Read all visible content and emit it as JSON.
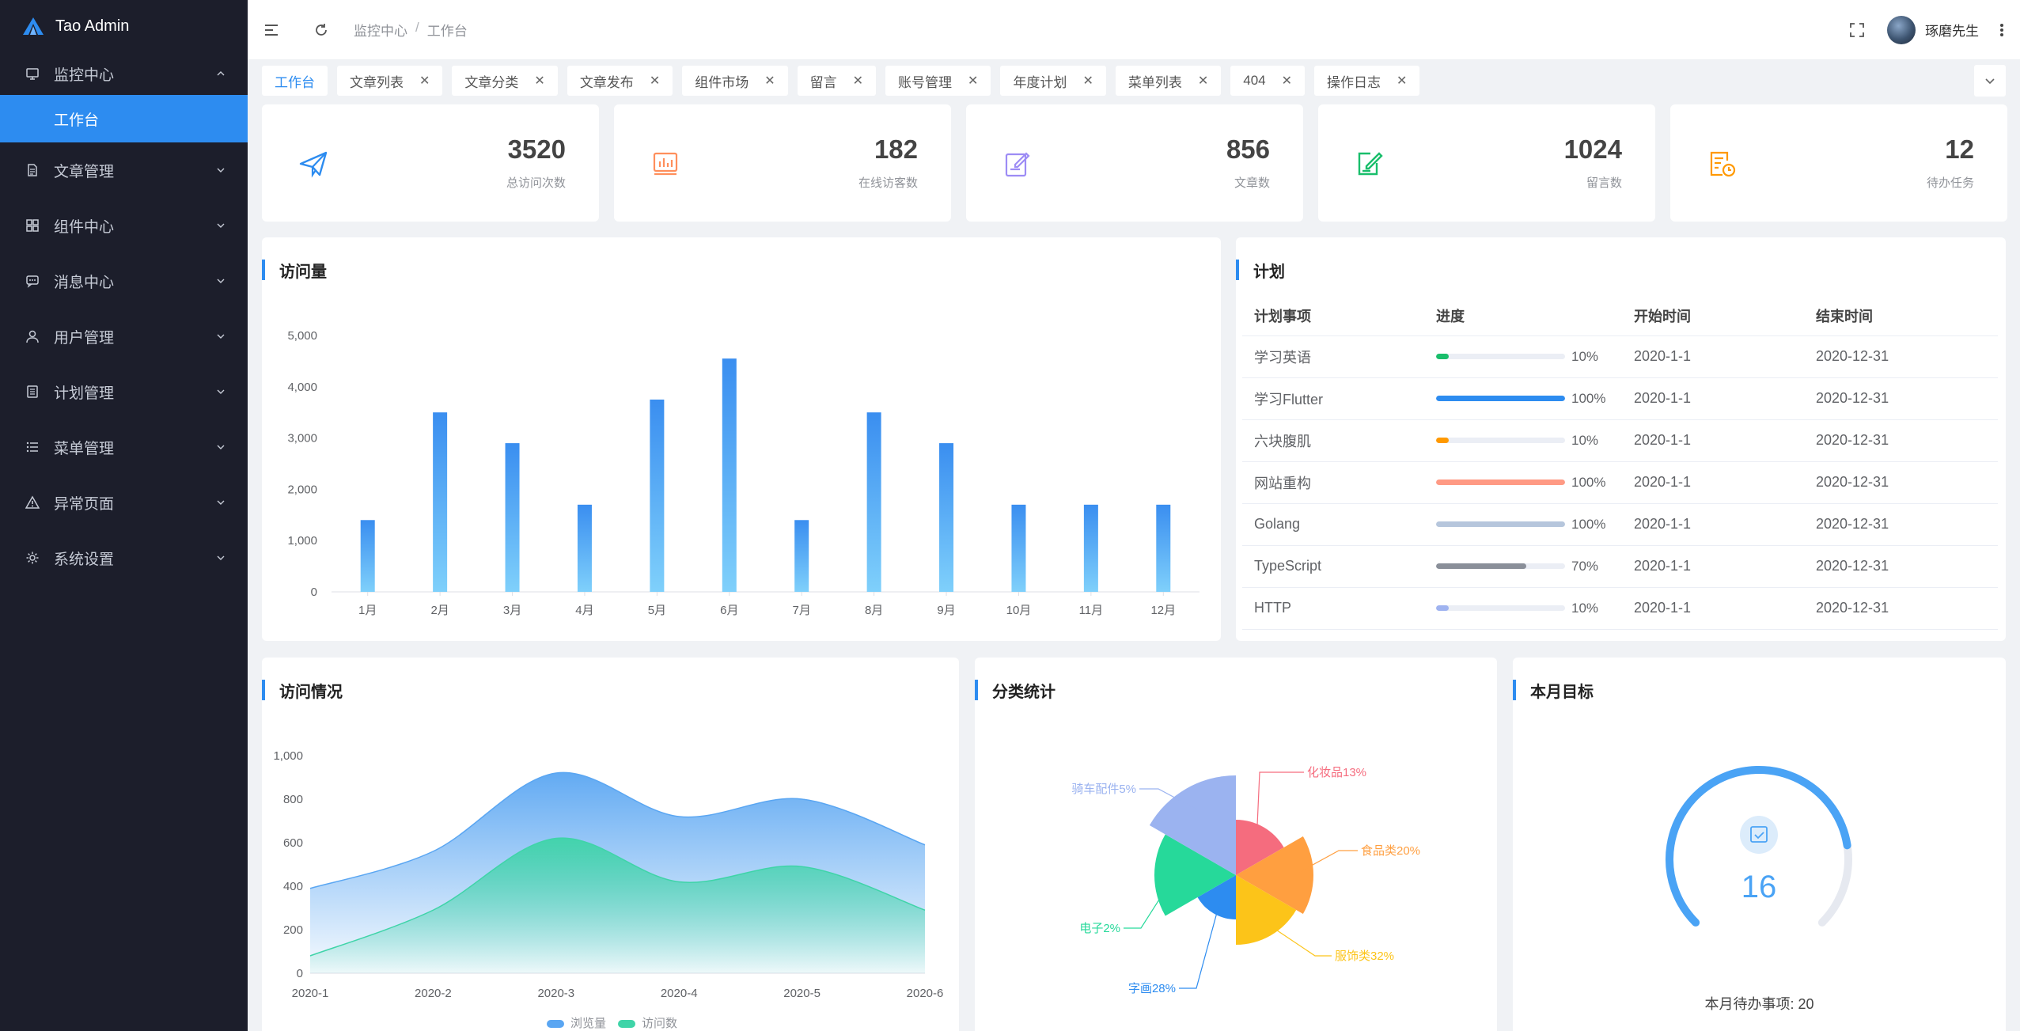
{
  "app": {
    "name": "Tao Admin"
  },
  "sidebar": {
    "items": [
      {
        "label": "监控中心",
        "icon": "monitor-icon",
        "expanded": true
      },
      {
        "label": "文章管理",
        "icon": "document-icon"
      },
      {
        "label": "组件中心",
        "icon": "grid-icon"
      },
      {
        "label": "消息中心",
        "icon": "message-icon"
      },
      {
        "label": "用户管理",
        "icon": "user-icon"
      },
      {
        "label": "计划管理",
        "icon": "list-icon"
      },
      {
        "label": "菜单管理",
        "icon": "menu-icon"
      },
      {
        "label": "异常页面",
        "icon": "warning-icon"
      },
      {
        "label": "系统设置",
        "icon": "gear-icon"
      }
    ],
    "active_sub": "工作台"
  },
  "header": {
    "breadcrumb": [
      "监控中心",
      "工作台"
    ],
    "breadcrumb_sep": "/",
    "username": "琢磨先生"
  },
  "tabs": [
    {
      "label": "工作台",
      "active": true
    },
    {
      "label": "文章列表"
    },
    {
      "label": "文章分类"
    },
    {
      "label": "文章发布"
    },
    {
      "label": "组件市场"
    },
    {
      "label": "留言"
    },
    {
      "label": "账号管理"
    },
    {
      "label": "年度计划"
    },
    {
      "label": "菜单列表"
    },
    {
      "label": "404"
    },
    {
      "label": "操作日志"
    }
  ],
  "stats": [
    {
      "value": "3520",
      "label": "总访问次数",
      "icon": "paper-plane-icon",
      "color": "#2d8cf0"
    },
    {
      "value": "182",
      "label": "在线访客数",
      "icon": "bar-chart-icon",
      "color": "#ff8f5c"
    },
    {
      "value": "856",
      "label": "文章数",
      "icon": "edit-note-icon",
      "color": "#9d8cf5"
    },
    {
      "value": "1024",
      "label": "留言数",
      "icon": "pencil-square-icon",
      "color": "#19be6b"
    },
    {
      "value": "12",
      "label": "待办任务",
      "icon": "task-clock-icon",
      "color": "#ff9900"
    }
  ],
  "visits": {
    "title": "访问量",
    "chart_data": {
      "type": "bar",
      "categories": [
        "1月",
        "2月",
        "3月",
        "4月",
        "5月",
        "6月",
        "7月",
        "8月",
        "9月",
        "10月",
        "11月",
        "12月"
      ],
      "values": [
        1400,
        3500,
        2900,
        1700,
        3750,
        4550,
        1400,
        3500,
        2900,
        1700,
        1700,
        1700
      ],
      "ylim": [
        0,
        5000
      ],
      "yticks": [
        "0",
        "1,000",
        "2,000",
        "3,000",
        "4,000",
        "5,000"
      ],
      "grid": false
    }
  },
  "plan": {
    "title": "计划",
    "columns": [
      "计划事项",
      "进度",
      "开始时间",
      "结束时间"
    ],
    "rows": [
      {
        "name": "学习英语",
        "progress": 10,
        "pct": "10%",
        "start": "2020-1-1",
        "end": "2020-12-31",
        "color": "#19be6b"
      },
      {
        "name": "学习Flutter",
        "progress": 100,
        "pct": "100%",
        "start": "2020-1-1",
        "end": "2020-12-31",
        "color": "#2d8cf0"
      },
      {
        "name": "六块腹肌",
        "progress": 10,
        "pct": "10%",
        "start": "2020-1-1",
        "end": "2020-12-31",
        "color": "#ff9900"
      },
      {
        "name": "网站重构",
        "progress": 100,
        "pct": "100%",
        "start": "2020-1-1",
        "end": "2020-12-31",
        "color": "#ff9a84"
      },
      {
        "name": "Golang",
        "progress": 100,
        "pct": "100%",
        "start": "2020-1-1",
        "end": "2020-12-31",
        "color": "#b6c6dc"
      },
      {
        "name": "TypeScript",
        "progress": 70,
        "pct": "70%",
        "start": "2020-1-1",
        "end": "2020-12-31",
        "color": "#8a8f99"
      },
      {
        "name": "HTTP",
        "progress": 10,
        "pct": "10%",
        "start": "2020-1-1",
        "end": "2020-12-31",
        "color": "#9fb3f0"
      }
    ]
  },
  "access": {
    "title": "访问情况",
    "chart_data": {
      "type": "area",
      "x": [
        "2020-1",
        "2020-2",
        "2020-3",
        "2020-4",
        "2020-5",
        "2020-6"
      ],
      "series": [
        {
          "name": "浏览量",
          "values": [
            390,
            560,
            920,
            720,
            800,
            590
          ],
          "color": "#5aa6f2"
        },
        {
          "name": "访问数",
          "values": [
            80,
            290,
            620,
            420,
            490,
            290
          ],
          "color": "#3fd4a8"
        }
      ],
      "ylim": [
        0,
        1000
      ],
      "yticks": [
        "0",
        "200",
        "400",
        "600",
        "800",
        "1,000"
      ],
      "legend": "bottom"
    }
  },
  "category": {
    "title": "分类统计",
    "chart_data": {
      "type": "pie",
      "rose": true,
      "slices": [
        {
          "name": "化妆品",
          "value": 13,
          "label": "化妆品13%",
          "color": "#f56c7e"
        },
        {
          "name": "食品类",
          "value": 20,
          "label": "食品类20%",
          "color": "#ff9f40"
        },
        {
          "name": "服饰类",
          "value": 32,
          "label": "服饰类32%",
          "color": "#fcc419"
        },
        {
          "name": "字画",
          "value": 28,
          "label": "字画28%",
          "color": "#2d8cf0"
        },
        {
          "name": "电子",
          "value": 2,
          "label": "电子2%",
          "color": "#26d99a"
        },
        {
          "name": "骑车配件",
          "value": 5,
          "label": "骑车配件5%",
          "color": "#9bb3f0"
        }
      ]
    }
  },
  "goal": {
    "title": "本月目标",
    "value": "16",
    "progress": 0.8,
    "footer": "本月待办事项: 20",
    "icon": "calendar-check-icon"
  }
}
